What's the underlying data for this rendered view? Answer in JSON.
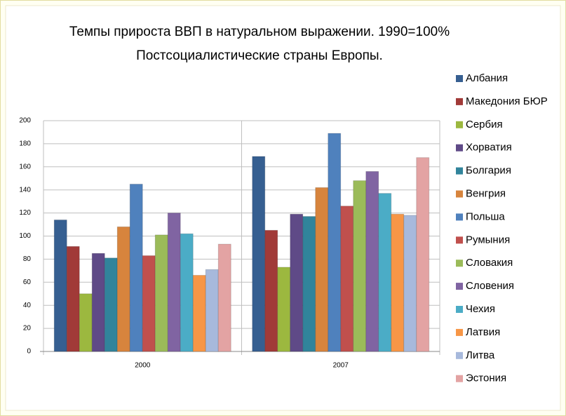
{
  "chart_data": {
    "type": "bar",
    "title": "Темпы прироста ВВП в натуральном выражении. 1990=100%",
    "subtitle": "Постсоциалистические страны Европы.",
    "categories": [
      "2000",
      "2007"
    ],
    "series": [
      {
        "name": "Албания",
        "color": "#365f91",
        "values": [
          114,
          169
        ]
      },
      {
        "name": "Македония БЮР",
        "color": "#a13a38",
        "values": [
          91,
          105
        ]
      },
      {
        "name": "Сербия",
        "color": "#9cb83f",
        "values": [
          50,
          73
        ]
      },
      {
        "name": "Хорватия",
        "color": "#5f4a87",
        "values": [
          85,
          119
        ]
      },
      {
        "name": "Болгария",
        "color": "#31849b",
        "values": [
          81,
          117
        ]
      },
      {
        "name": "Венгрия",
        "color": "#d7843d",
        "values": [
          108,
          142
        ]
      },
      {
        "name": "Польша",
        "color": "#4f81bd",
        "values": [
          145,
          189
        ]
      },
      {
        "name": "Румыния",
        "color": "#c0504d",
        "values": [
          83,
          126
        ]
      },
      {
        "name": "Словакия",
        "color": "#9bbb59",
        "values": [
          101,
          148
        ]
      },
      {
        "name": "Словения",
        "color": "#8064a2",
        "values": [
          120,
          156
        ]
      },
      {
        "name": "Чехия",
        "color": "#4bacc6",
        "values": [
          102,
          137
        ]
      },
      {
        "name": "Латвия",
        "color": "#f79646",
        "values": [
          66,
          119
        ]
      },
      {
        "name": "Литва",
        "color": "#a7b9dc",
        "values": [
          71,
          118
        ]
      },
      {
        "name": "Эстония",
        "color": "#e3a3a3",
        "values": [
          93,
          168
        ]
      }
    ],
    "ylim": [
      0,
      200
    ],
    "yticks": [
      0,
      20,
      40,
      60,
      80,
      100,
      120,
      140,
      160,
      180,
      200
    ],
    "grid": true
  }
}
